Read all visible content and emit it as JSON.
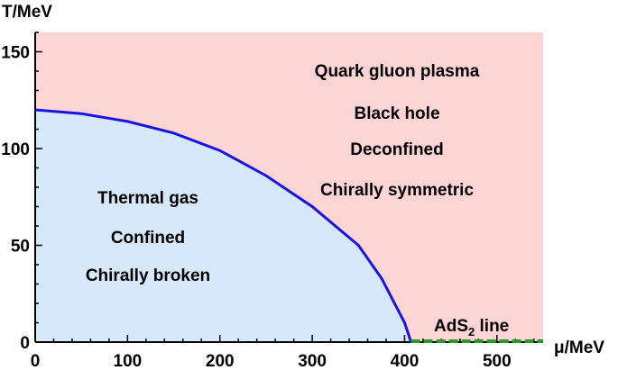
{
  "chart_data": {
    "type": "area",
    "xlabel": "μ/MeV",
    "ylabel": "T/MeV",
    "xlim": [
      0,
      550
    ],
    "ylim": [
      0,
      160
    ],
    "x_ticks": [
      0,
      100,
      200,
      300,
      400,
      500
    ],
    "y_ticks": [
      0,
      50,
      100,
      150
    ],
    "colors": {
      "confined_region": "#d7e8fb",
      "deconfined_region": "#fdd5d5",
      "transition_line": "#1a14e0",
      "ads2_line": "#2a9a2a"
    },
    "series": [
      {
        "name": "",
        "x": [
          0,
          50,
          100,
          150,
          200,
          250,
          300,
          350,
          375,
          400,
          407
        ],
        "y": [
          120,
          118,
          114,
          108,
          99,
          86,
          70,
          50,
          33,
          10,
          0
        ]
      },
      {
        "name": "",
        "x": [
          407,
          550
        ],
        "y": [
          0,
          0
        ]
      }
    ],
    "annotations": {
      "deconfined": [
        "Quark gluon plasma",
        "Black hole",
        "Deconfined",
        "Chirally symmetric"
      ],
      "confined": [
        "Thermal gas",
        "Confined",
        "Chirally broken"
      ],
      "ads2_prefix": "AdS",
      "ads2_subscript": "2",
      "ads2_suffix": " line"
    }
  }
}
